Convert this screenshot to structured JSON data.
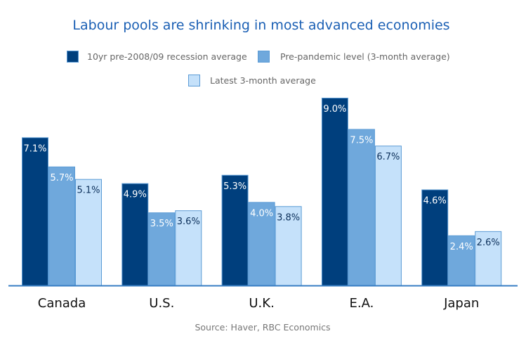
{
  "chart_data": {
    "type": "bar",
    "title": "Labour pools are shrinking in most advanced economies",
    "categories": [
      "Canada",
      "U.S.",
      "U.K.",
      "E.A.",
      "Japan"
    ],
    "series": [
      {
        "name": "10yr pre-2008/09 recession average",
        "values": [
          7.1,
          4.9,
          5.3,
          9.0,
          4.6
        ],
        "color": "#003f7d",
        "label_color": "#ffffff"
      },
      {
        "name": "Pre-pandemic level (3-month average)",
        "values": [
          5.7,
          3.5,
          4.0,
          7.5,
          2.4
        ],
        "color": "#6fa8dc",
        "label_color": "#ffffff"
      },
      {
        "name": "Latest 3-month average",
        "values": [
          5.1,
          3.6,
          3.8,
          6.7,
          2.6
        ],
        "color": "#c5e1fa",
        "label_color": "#0b2f5a"
      }
    ],
    "value_format": "%",
    "xlabel": "",
    "ylabel": "",
    "ylim": [
      0,
      9.0
    ],
    "grid": false,
    "legend_placement": "top-center",
    "source": "Source: Haver, RBC Economics"
  }
}
